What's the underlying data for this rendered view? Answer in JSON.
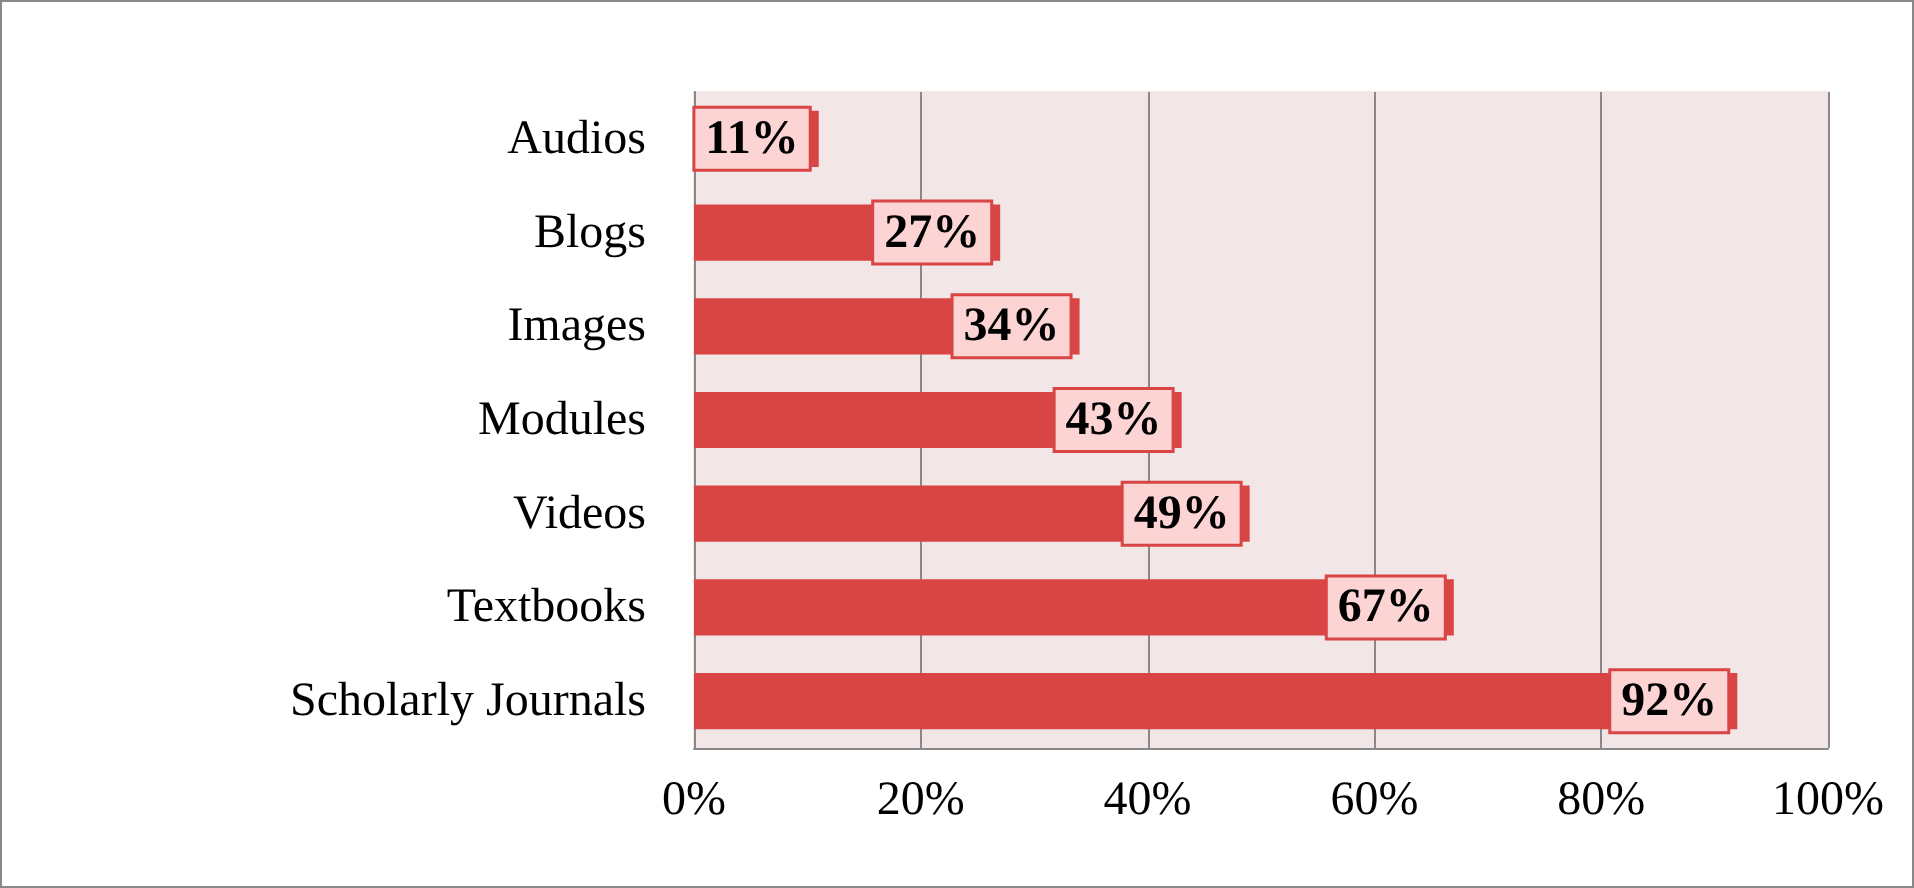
{
  "chart_data": {
    "type": "bar",
    "orientation": "horizontal",
    "categories": [
      "Audios",
      "Blogs",
      "Images",
      "Modules",
      "Videos",
      "Textbooks",
      "Scholarly Journals"
    ],
    "values": [
      11,
      27,
      34,
      43,
      49,
      67,
      92
    ],
    "value_labels": [
      "11%",
      "27%",
      "34%",
      "43%",
      "49%",
      "67%",
      "92%"
    ],
    "color": "#d94444",
    "xlim": [
      0,
      100
    ],
    "xticks": [
      {
        "value": 0,
        "label": "0%"
      },
      {
        "value": 20,
        "label": "20%"
      },
      {
        "value": 40,
        "label": "40%"
      },
      {
        "value": 60,
        "label": "60%"
      },
      {
        "value": 80,
        "label": "80%"
      },
      {
        "value": 100,
        "label": "100%"
      }
    ],
    "grid": "x"
  }
}
